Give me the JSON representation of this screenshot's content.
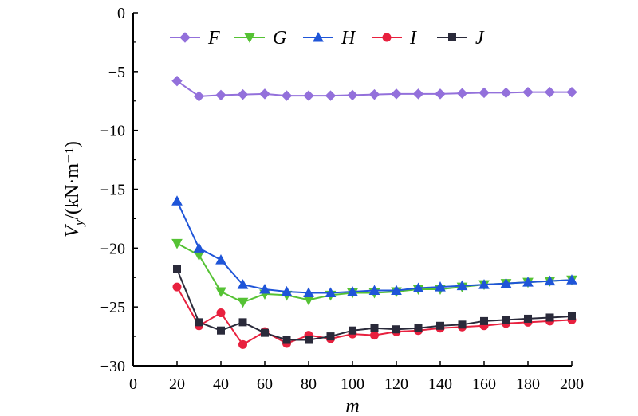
{
  "chart_data": {
    "type": "line",
    "xlabel": "m",
    "ylabel_main": "V",
    "ylabel_sub": "y",
    "ylabel_unit": "/(kN·m⁻¹)",
    "xlim": [
      0,
      200
    ],
    "ylim": [
      -30,
      0
    ],
    "xticks": [
      0,
      20,
      40,
      60,
      80,
      100,
      120,
      140,
      160,
      180,
      200
    ],
    "yticks": [
      0,
      -5,
      -10,
      -15,
      -20,
      -25,
      -30
    ],
    "ytick_labels": [
      "0",
      "−5",
      "−10",
      "−15",
      "−20",
      "−25",
      "−30"
    ],
    "grid": false,
    "legend_position": "top",
    "x": [
      20,
      30,
      40,
      50,
      60,
      70,
      80,
      90,
      100,
      110,
      120,
      130,
      140,
      150,
      160,
      170,
      180,
      190,
      200
    ],
    "series": [
      {
        "name": "F",
        "color": "#9370DB",
        "marker": "diamond",
        "values": [
          -5.8,
          -7.1,
          -7.0,
          -6.95,
          -6.9,
          -7.05,
          -7.05,
          -7.05,
          -7.0,
          -6.95,
          -6.9,
          -6.9,
          -6.9,
          -6.85,
          -6.8,
          -6.8,
          -6.75,
          -6.75,
          -6.75
        ]
      },
      {
        "name": "G",
        "color": "#55C234",
        "marker": "triangle-down",
        "values": [
          -19.6,
          -20.6,
          -23.7,
          -24.6,
          -23.9,
          -24.0,
          -24.4,
          -24.0,
          -23.8,
          -23.8,
          -23.7,
          -23.5,
          -23.5,
          -23.3,
          -23.1,
          -23.0,
          -22.9,
          -22.8,
          -22.7
        ]
      },
      {
        "name": "H",
        "color": "#1F55D8",
        "marker": "triangle-up",
        "values": [
          -16.0,
          -20.0,
          -21.0,
          -23.1,
          -23.5,
          -23.7,
          -23.8,
          -23.8,
          -23.7,
          -23.6,
          -23.6,
          -23.4,
          -23.3,
          -23.2,
          -23.1,
          -23.0,
          -22.9,
          -22.8,
          -22.7
        ]
      },
      {
        "name": "I",
        "color": "#E8203E",
        "marker": "circle",
        "values": [
          -23.3,
          -26.6,
          -25.5,
          -28.2,
          -27.1,
          -28.1,
          -27.4,
          -27.7,
          -27.3,
          -27.4,
          -27.1,
          -27.0,
          -26.8,
          -26.7,
          -26.6,
          -26.4,
          -26.3,
          -26.2,
          -26.1
        ]
      },
      {
        "name": "J",
        "color": "#2A2A3A",
        "marker": "square",
        "values": [
          -21.8,
          -26.3,
          -27.0,
          -26.3,
          -27.2,
          -27.8,
          -27.8,
          -27.5,
          -27.0,
          -26.8,
          -26.9,
          -26.8,
          -26.6,
          -26.5,
          -26.2,
          -26.1,
          -26.0,
          -25.9,
          -25.8
        ]
      }
    ]
  }
}
